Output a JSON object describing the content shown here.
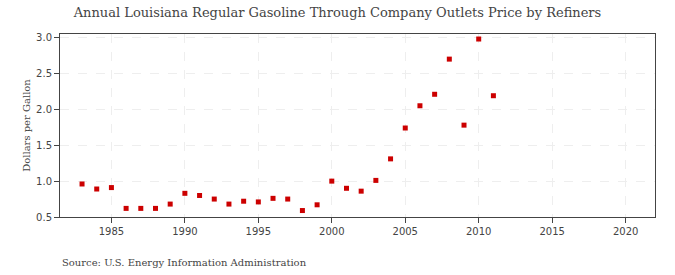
{
  "chart_data": {
    "type": "scatter",
    "title": "Annual Louisiana Regular Gasoline Through Company Outlets Price by Refiners",
    "ylabel": "Dollars per Gallon",
    "annotations": [
      "Source: U.S. Energy Information Administration"
    ],
    "x": [
      1983,
      1984,
      1985,
      1986,
      1987,
      1988,
      1989,
      1990,
      1991,
      1992,
      1993,
      1994,
      1995,
      1996,
      1997,
      1998,
      1999,
      2000,
      2001,
      2002,
      2003,
      2004,
      2005,
      2006,
      2007,
      2008,
      2009,
      2010,
      2011
    ],
    "values": [
      0.96,
      0.89,
      0.91,
      0.62,
      0.62,
      0.62,
      0.68,
      0.83,
      0.8,
      0.75,
      0.68,
      0.72,
      0.71,
      0.76,
      0.75,
      0.59,
      0.67,
      1.0,
      0.9,
      0.86,
      1.01,
      1.31,
      1.74,
      2.05,
      2.21,
      2.7,
      1.78,
      2.98,
      2.19
    ],
    "color": "#cc0000",
    "marker": "square",
    "xlim": [
      1981.5,
      2022
    ],
    "ylim": [
      0.5,
      3.05
    ],
    "xticks": [
      1985,
      1990,
      1995,
      2000,
      2005,
      2010,
      2015,
      2020
    ],
    "yticks": [
      0.5,
      {
        "value": 1.0,
        "label": "1.0"
      },
      1.5,
      {
        "value": 2.0,
        "label": "2.0"
      },
      2.5,
      {
        "value": 3.0,
        "label": "3.0"
      }
    ],
    "grid": true
  }
}
